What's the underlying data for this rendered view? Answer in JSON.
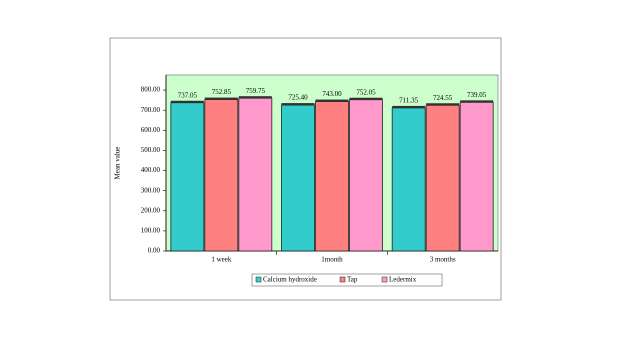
{
  "chart_data": {
    "type": "bar",
    "y_label": "Mean value",
    "categories": [
      "1 week",
      "1month",
      "3 months"
    ],
    "series": [
      {
        "name": "Calcium hydroxide",
        "color": "#33cccc",
        "values": [
          737.05,
          725.4,
          711.35
        ],
        "value_labels": [
          "737.05",
          "725.40",
          "711.35"
        ]
      },
      {
        "name": "Tap",
        "color": "#ff8080",
        "values": [
          752.85,
          743,
          724.55
        ],
        "value_labels": [
          "752.85",
          "743.00",
          "724.55"
        ]
      },
      {
        "name": "Ledermix",
        "color": "#ff99cc",
        "values": [
          759.75,
          752.05,
          739.05
        ],
        "value_labels": [
          "759.75",
          "752.05",
          "739.05"
        ]
      }
    ],
    "ylim": [
      0,
      875
    ],
    "yticks": [
      {
        "value": 0,
        "label": "0.00"
      },
      {
        "value": 100,
        "label": "100.00"
      },
      {
        "value": 200,
        "label": "200.00"
      },
      {
        "value": 300,
        "label": "300.00"
      },
      {
        "value": 400,
        "label": "400.00"
      },
      {
        "value": 500,
        "label": "500.00"
      },
      {
        "value": 600,
        "label": "600.00"
      },
      {
        "value": 700,
        "label": "700.00"
      },
      {
        "value": 800,
        "label": "800.00"
      }
    ],
    "plot_background": "#ccffcc"
  }
}
